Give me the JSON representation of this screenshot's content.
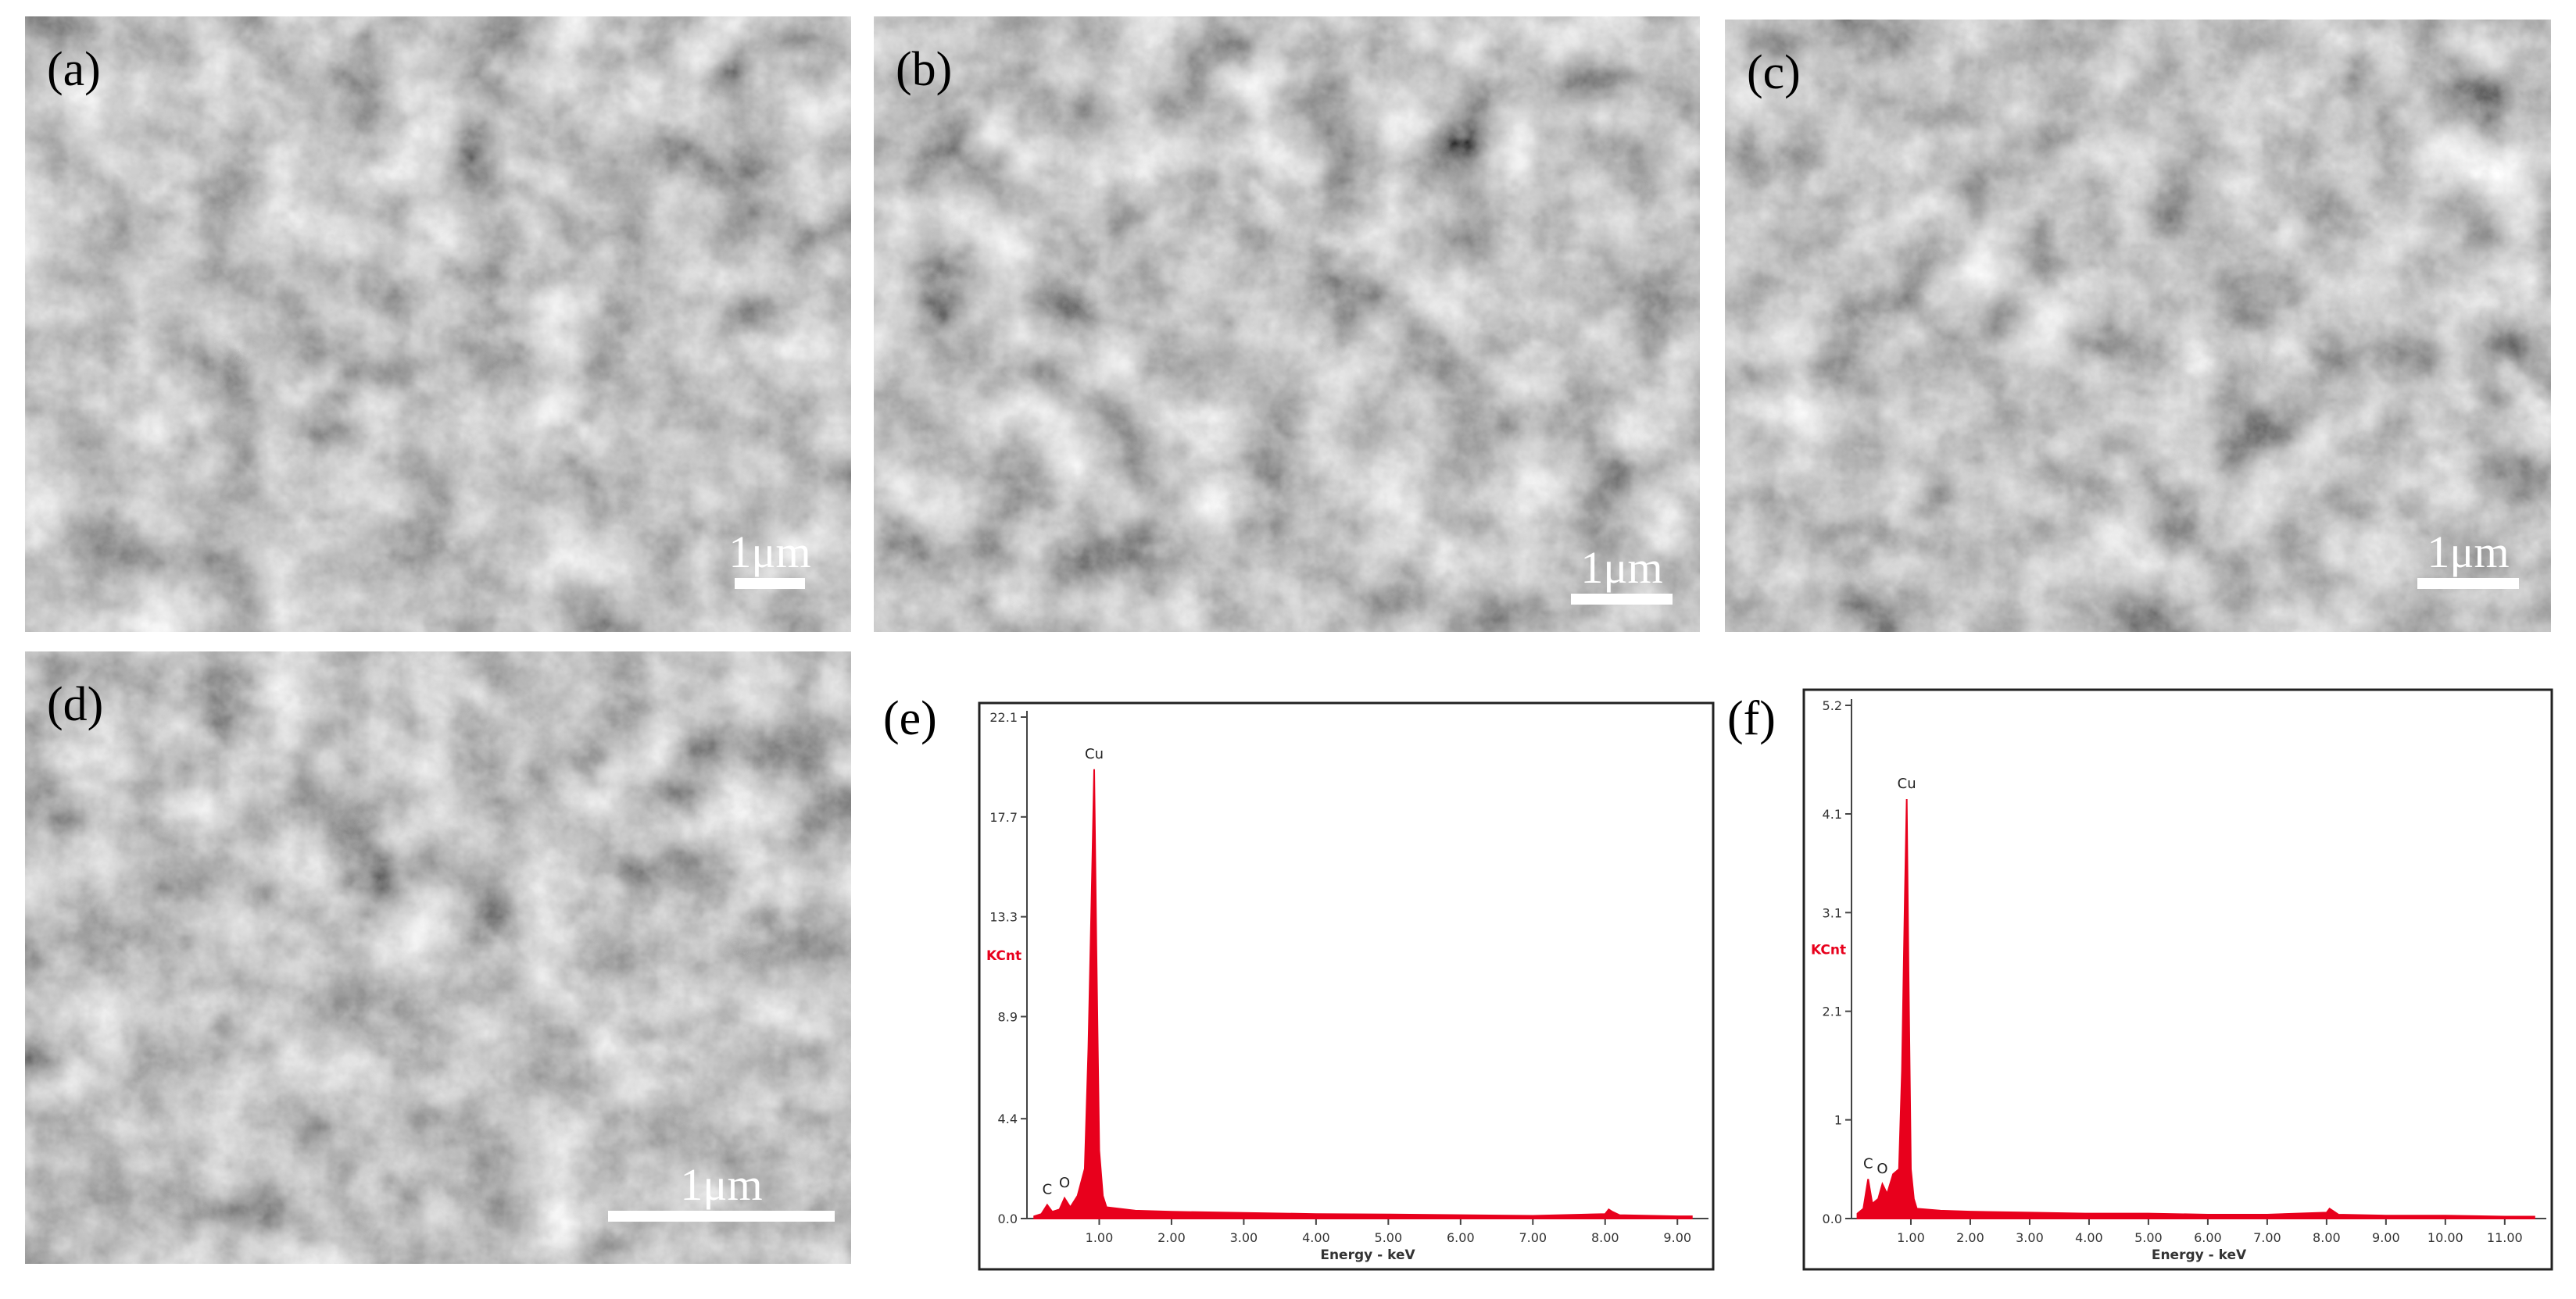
{
  "panels": [
    {
      "label": "(a)",
      "scale_bar": "1μm"
    },
    {
      "label": "(b)",
      "scale_bar": "1μm"
    },
    {
      "label": "(c)",
      "scale_bar": "1μm"
    },
    {
      "label": "(d)",
      "scale_bar": "1μm"
    }
  ],
  "chart_data": [
    {
      "type": "area",
      "label": "(e)",
      "ylabel": "KCnt",
      "xlabel": "Energy - keV",
      "color": "#e8001c",
      "x": [
        0.1,
        0.2,
        0.28,
        0.35,
        0.45,
        0.52,
        0.6,
        0.7,
        0.8,
        0.85,
        0.9,
        0.93,
        0.96,
        1.0,
        1.05,
        1.1,
        1.5,
        2.0,
        3.0,
        4.0,
        5.0,
        6.0,
        7.0,
        8.0,
        8.05,
        8.1,
        8.2,
        9.0,
        9.2
      ],
      "values": [
        0.1,
        0.2,
        0.6,
        0.3,
        0.4,
        0.9,
        0.5,
        1.0,
        2.2,
        7.5,
        15.0,
        19.8,
        12.0,
        3.0,
        1.0,
        0.5,
        0.35,
        0.3,
        0.25,
        0.2,
        0.18,
        0.15,
        0.12,
        0.2,
        0.4,
        0.3,
        0.15,
        0.1,
        0.1
      ],
      "peaks": [
        {
          "label": "C",
          "x": 0.28
        },
        {
          "label": "O",
          "x": 0.52
        },
        {
          "label": "Cu",
          "x": 0.93
        }
      ],
      "xlim": [
        0,
        9.43
      ],
      "ylim": [
        0,
        22.1
      ],
      "xticks": [
        {
          "value": 1,
          "label": "1.00"
        },
        {
          "value": 2,
          "label": "2.00"
        },
        {
          "value": 3,
          "label": "3.00"
        },
        {
          "value": 4,
          "label": "4.00"
        },
        {
          "value": 5,
          "label": "5.00"
        },
        {
          "value": 6,
          "label": "6.00"
        },
        {
          "value": 7,
          "label": "7.00"
        },
        {
          "value": 8,
          "label": "8.00"
        },
        {
          "value": 9,
          "label": "9.00"
        }
      ],
      "yticks": [
        {
          "value": 0,
          "label": "0.0"
        },
        4.4,
        8.9,
        13.3,
        17.7,
        22.1
      ]
    },
    {
      "type": "area",
      "label": "(f)",
      "ylabel": "KCnt",
      "xlabel": "Energy - keV",
      "color": "#e8001c",
      "x": [
        0.1,
        0.2,
        0.28,
        0.35,
        0.45,
        0.52,
        0.6,
        0.7,
        0.8,
        0.85,
        0.9,
        0.93,
        0.96,
        1.0,
        1.05,
        1.1,
        1.5,
        2.0,
        3.0,
        4.0,
        5.0,
        6.0,
        7.0,
        8.0,
        8.05,
        8.1,
        8.2,
        9.0,
        10.0,
        11.0,
        11.5
      ],
      "values": [
        0.05,
        0.1,
        0.4,
        0.15,
        0.2,
        0.35,
        0.25,
        0.45,
        0.5,
        1.5,
        3.3,
        4.25,
        2.5,
        0.5,
        0.2,
        0.1,
        0.08,
        0.07,
        0.06,
        0.05,
        0.05,
        0.04,
        0.04,
        0.06,
        0.1,
        0.08,
        0.04,
        0.03,
        0.03,
        0.02,
        0.02
      ],
      "peaks": [
        {
          "label": "C",
          "x": 0.28
        },
        {
          "label": "O",
          "x": 0.52
        },
        {
          "label": "Cu",
          "x": 0.93
        }
      ],
      "xlim": [
        0,
        11.7
      ],
      "ylim": [
        0,
        5.2
      ],
      "xticks": [
        {
          "value": 1,
          "label": "1.00"
        },
        {
          "value": 2,
          "label": "2.00"
        },
        {
          "value": 3,
          "label": "3.00"
        },
        {
          "value": 4,
          "label": "4.00"
        },
        {
          "value": 5,
          "label": "5.00"
        },
        {
          "value": 6,
          "label": "6.00"
        },
        {
          "value": 7,
          "label": "7.00"
        },
        {
          "value": 8,
          "label": "8.00"
        },
        {
          "value": 9,
          "label": "9.00"
        },
        {
          "value": 10,
          "label": "10.00"
        },
        {
          "value": 11,
          "label": "11.00"
        }
      ],
      "yticks": [
        {
          "value": 0,
          "label": "0.0"
        },
        1.0,
        2.1,
        3.1,
        4.1,
        5.2
      ]
    }
  ]
}
